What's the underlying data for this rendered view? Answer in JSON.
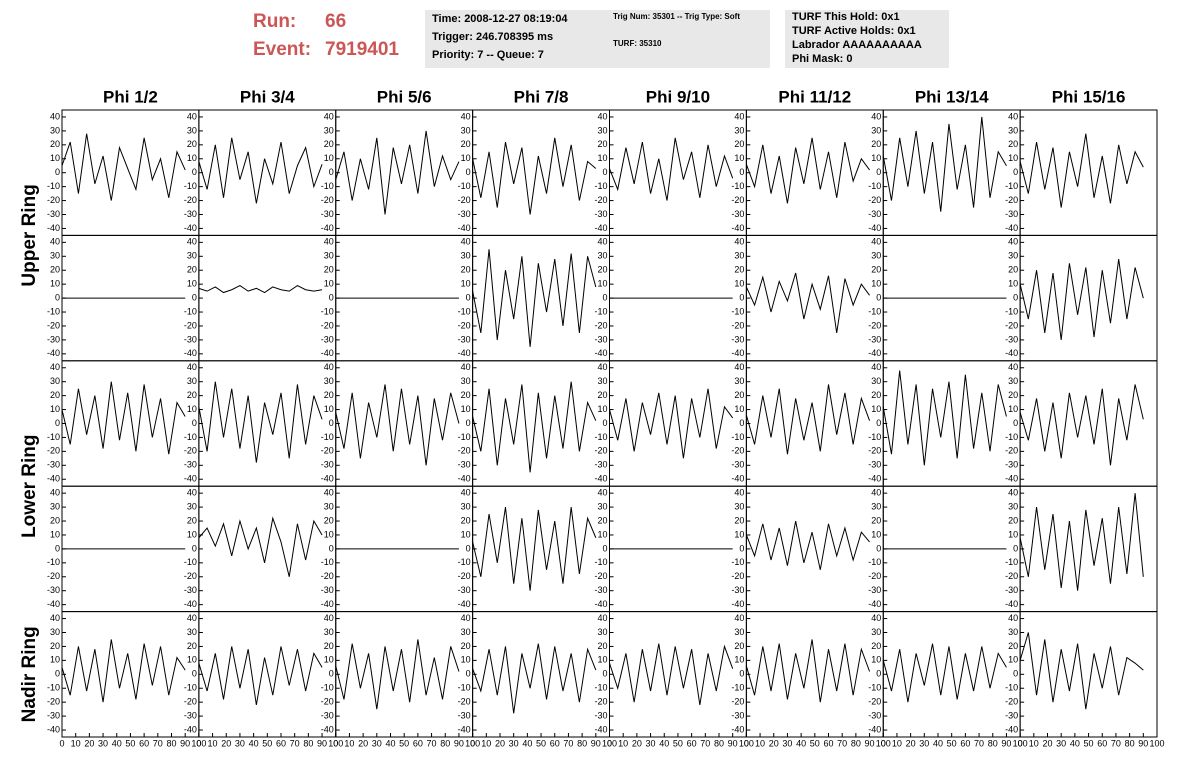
{
  "header": {
    "run_label": "Run:",
    "run": "66",
    "event_label": "Event:",
    "event": "7919401"
  },
  "info": {
    "box1": [
      "Time: 2008-12-27 08:19:04",
      "Trigger: 246.708395 ms",
      "Priority: 7 -- Queue: 7"
    ],
    "box2": [
      "Trig Num: 35301 -- Trig Type: Soft",
      "TURF: 35310"
    ],
    "box3": [
      "TURF This Hold: 0x1",
      "TURF Active Holds: 0x1",
      "Labrador AAAAAAAAAA",
      "Phi Mask: 0"
    ]
  },
  "chart_data": {
    "type": "line",
    "columns": [
      "Phi 1/2",
      "Phi 3/4",
      "Phi 5/6",
      "Phi 7/8",
      "Phi 9/10",
      "Phi 11/12",
      "Phi 13/14",
      "Phi 15/16"
    ],
    "rows": [
      "Upper Ring",
      "Lower Ring",
      "Nadir Ring"
    ],
    "color": "#000000",
    "xlim": [
      0,
      100
    ],
    "xticks": [
      0,
      10,
      20,
      30,
      40,
      50,
      60,
      70,
      80,
      90,
      100
    ],
    "ylim": [
      -45,
      45
    ],
    "yticks": [
      -40,
      -30,
      -20,
      -10,
      0,
      10,
      20,
      30,
      40
    ],
    "x": [
      0,
      6,
      12,
      18,
      24,
      30,
      36,
      42,
      48,
      54,
      60,
      66,
      72,
      78,
      84,
      90
    ],
    "panels": [
      [
        {
          "values": [
            5,
            22,
            -15,
            28,
            -8,
            12,
            -20,
            18,
            3,
            -12,
            25,
            -5,
            10,
            -18,
            15,
            2
          ]
        },
        {
          "values": [
            8,
            -12,
            20,
            -18,
            25,
            -5,
            15,
            -22,
            10,
            -8,
            22,
            -15,
            5,
            18,
            -10,
            6
          ]
        },
        {
          "values": [
            -5,
            15,
            -20,
            10,
            -12,
            25,
            -30,
            18,
            -8,
            20,
            -15,
            30,
            -10,
            12,
            -5,
            8
          ]
        },
        {
          "values": [
            10,
            -18,
            15,
            -25,
            22,
            -8,
            18,
            -30,
            12,
            -15,
            25,
            -10,
            20,
            -20,
            8,
            3
          ]
        },
        {
          "values": [
            3,
            -12,
            18,
            -8,
            22,
            -15,
            10,
            -20,
            25,
            -5,
            15,
            -18,
            20,
            -10,
            12,
            -4
          ]
        },
        {
          "values": [
            6,
            -10,
            20,
            -15,
            12,
            -22,
            18,
            -8,
            25,
            -12,
            15,
            -18,
            22,
            -6,
            10,
            2
          ]
        },
        {
          "values": [
            12,
            -20,
            25,
            -10,
            30,
            -15,
            22,
            -28,
            35,
            -12,
            20,
            -25,
            40,
            -18,
            15,
            5
          ]
        },
        {
          "values": [
            8,
            -15,
            22,
            -12,
            18,
            -25,
            15,
            -10,
            28,
            -18,
            12,
            -22,
            20,
            -8,
            15,
            4
          ]
        }
      ],
      [
        {
          "values": [
            0,
            0,
            0,
            0,
            0,
            0,
            0,
            0,
            0,
            0,
            0,
            0,
            0,
            0,
            0,
            0
          ]
        },
        {
          "values": [
            7,
            5,
            8,
            4,
            6,
            9,
            5,
            7,
            4,
            8,
            6,
            5,
            9,
            6,
            5,
            6
          ]
        },
        {
          "values": [
            0,
            0,
            0,
            0,
            0,
            0,
            0,
            0,
            0,
            0,
            0,
            0,
            0,
            0,
            0,
            0
          ]
        },
        {
          "values": [
            5,
            -25,
            35,
            -30,
            20,
            -15,
            30,
            -35,
            25,
            -10,
            28,
            -20,
            32,
            -25,
            30,
            8
          ]
        },
        {
          "values": [
            0,
            0,
            0,
            0,
            0,
            0,
            0,
            0,
            0,
            0,
            0,
            0,
            0,
            0,
            0,
            0
          ]
        },
        {
          "values": [
            8,
            -5,
            15,
            -10,
            12,
            -2,
            18,
            -15,
            10,
            -8,
            16,
            -25,
            14,
            -5,
            10,
            2
          ]
        },
        {
          "values": [
            0,
            0,
            0,
            0,
            0,
            0,
            0,
            0,
            0,
            0,
            0,
            0,
            0,
            0,
            0,
            0
          ]
        },
        {
          "values": [
            10,
            -15,
            20,
            -25,
            18,
            -30,
            25,
            -12,
            22,
            -28,
            20,
            -18,
            28,
            -15,
            22,
            0
          ]
        }
      ],
      [
        {
          "values": [
            10,
            -15,
            25,
            -8,
            20,
            -18,
            30,
            -12,
            22,
            -20,
            28,
            -10,
            18,
            -22,
            15,
            5
          ]
        },
        {
          "values": [
            12,
            -20,
            30,
            -10,
            25,
            -18,
            20,
            -28,
            15,
            -8,
            22,
            -25,
            28,
            -15,
            20,
            3
          ]
        },
        {
          "values": [
            8,
            -18,
            22,
            -25,
            15,
            -10,
            28,
            -20,
            25,
            -15,
            20,
            -30,
            18,
            -12,
            22,
            0
          ]
        },
        {
          "values": [
            5,
            -20,
            25,
            -30,
            18,
            -15,
            28,
            -35,
            22,
            -25,
            20,
            -18,
            30,
            -20,
            15,
            2
          ]
        },
        {
          "values": [
            10,
            -12,
            18,
            -20,
            15,
            -8,
            22,
            -15,
            20,
            -25,
            18,
            -10,
            25,
            -18,
            12,
            4
          ]
        },
        {
          "values": [
            6,
            -15,
            20,
            -10,
            25,
            -22,
            18,
            -12,
            15,
            -20,
            28,
            -8,
            22,
            -15,
            18,
            2
          ]
        },
        {
          "values": [
            12,
            -22,
            38,
            -15,
            28,
            -30,
            25,
            -10,
            30,
            -25,
            35,
            -18,
            22,
            -20,
            28,
            5
          ]
        },
        {
          "values": [
            8,
            -12,
            18,
            -20,
            15,
            -25,
            22,
            -10,
            20,
            -15,
            25,
            -30,
            18,
            -12,
            28,
            3
          ]
        }
      ],
      [
        {
          "values": [
            0,
            0,
            0,
            0,
            0,
            0,
            0,
            0,
            0,
            0,
            0,
            0,
            0,
            0,
            0,
            0
          ]
        },
        {
          "values": [
            8,
            15,
            2,
            18,
            -5,
            20,
            0,
            15,
            -10,
            22,
            5,
            -20,
            18,
            -8,
            20,
            10
          ]
        },
        {
          "values": [
            0,
            0,
            0,
            0,
            0,
            0,
            0,
            0,
            0,
            0,
            0,
            0,
            0,
            0,
            0,
            0
          ]
        },
        {
          "values": [
            5,
            -20,
            25,
            -10,
            30,
            -25,
            22,
            -30,
            28,
            -15,
            20,
            -25,
            30,
            -18,
            22,
            8
          ]
        },
        {
          "values": [
            0,
            0,
            0,
            0,
            0,
            0,
            0,
            0,
            0,
            0,
            0,
            0,
            0,
            0,
            0,
            0
          ]
        },
        {
          "values": [
            10,
            -5,
            18,
            -8,
            15,
            -12,
            20,
            -10,
            12,
            -15,
            18,
            -5,
            15,
            -8,
            12,
            5
          ]
        },
        {
          "values": [
            0,
            0,
            0,
            0,
            0,
            0,
            0,
            0,
            0,
            0,
            0,
            0,
            0,
            0,
            0,
            0
          ]
        },
        {
          "values": [
            8,
            -20,
            30,
            -15,
            25,
            -28,
            20,
            -30,
            28,
            -12,
            22,
            -25,
            30,
            -18,
            40,
            -20
          ]
        }
      ],
      [
        {
          "values": [
            5,
            -15,
            20,
            -12,
            18,
            -20,
            25,
            -10,
            15,
            -18,
            22,
            -8,
            20,
            -15,
            12,
            3
          ]
        },
        {
          "values": [
            8,
            -12,
            15,
            -18,
            20,
            -10,
            18,
            -22,
            12,
            -15,
            20,
            -8,
            18,
            -12,
            15,
            5
          ]
        },
        {
          "values": [
            6,
            -18,
            22,
            -10,
            15,
            -25,
            20,
            -12,
            18,
            -20,
            25,
            -15,
            12,
            -18,
            20,
            2
          ]
        },
        {
          "values": [
            4,
            -12,
            18,
            -15,
            20,
            -28,
            15,
            -10,
            22,
            -18,
            20,
            -12,
            15,
            -20,
            18,
            3
          ]
        },
        {
          "values": [
            8,
            -10,
            15,
            -20,
            18,
            -12,
            22,
            -15,
            20,
            -10,
            18,
            -22,
            15,
            -12,
            20,
            4
          ]
        },
        {
          "values": [
            6,
            -15,
            20,
            -12,
            22,
            -18,
            15,
            -10,
            25,
            -20,
            18,
            -12,
            22,
            -15,
            18,
            2
          ]
        },
        {
          "values": [
            10,
            -12,
            18,
            -20,
            15,
            -8,
            22,
            -15,
            20,
            -18,
            15,
            -12,
            20,
            -10,
            15,
            5
          ]
        },
        {
          "values": [
            10,
            30,
            -15,
            25,
            -20,
            18,
            -12,
            22,
            -25,
            15,
            -10,
            20,
            -15,
            12,
            8,
            3
          ]
        }
      ]
    ]
  }
}
